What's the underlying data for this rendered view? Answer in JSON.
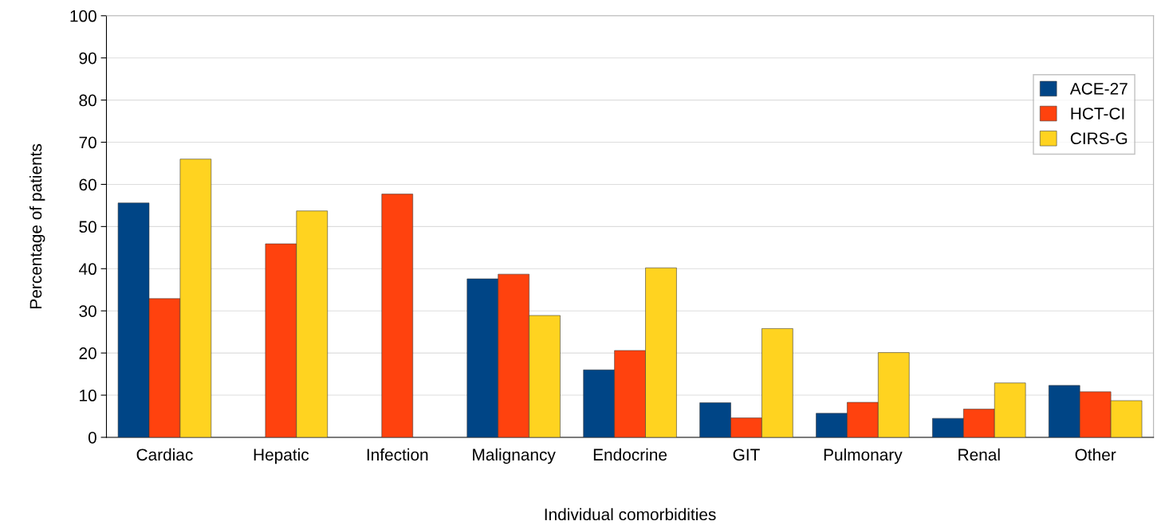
{
  "chart_data": {
    "type": "bar",
    "xlabel": "Individual comorbidities",
    "ylabel": "Percentage of patients",
    "categories": [
      "Cardiac",
      "Hepatic",
      "Infection",
      "Malignancy",
      "Endocrine",
      "GIT",
      "Pulmonary",
      "Renal",
      "Other"
    ],
    "series": [
      {
        "name": "ACE-27",
        "color": "#004586",
        "values": [
          55.6,
          null,
          null,
          37.6,
          16,
          8.2,
          5.7,
          4.5,
          12.3
        ]
      },
      {
        "name": "HCT-CI",
        "color": "#ff420e",
        "values": [
          32.9,
          45.9,
          57.7,
          38.7,
          20.6,
          4.6,
          8.3,
          6.7,
          10.8
        ]
      },
      {
        "name": "CIRS-G",
        "color": "#ffd320",
        "values": [
          66,
          53.7,
          null,
          28.9,
          40.2,
          25.8,
          20.1,
          12.9,
          8.7
        ]
      }
    ],
    "ylim": [
      0,
      100
    ],
    "yticks": [
      0,
      10,
      20,
      30,
      40,
      50,
      60,
      70,
      80,
      90,
      100
    ],
    "grid": "y",
    "legend": "top right"
  }
}
